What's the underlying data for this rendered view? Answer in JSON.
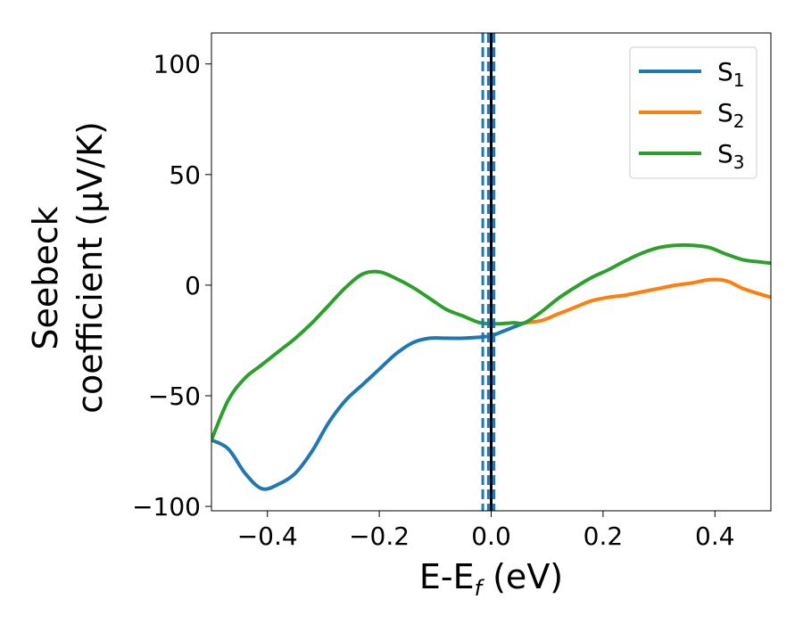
{
  "chart_data": {
    "type": "line",
    "xlabel_main": "E-E",
    "xlabel_sub": "f",
    "xlabel_unit": " (eV)",
    "ylabel_line1": "Seebeck",
    "ylabel_line2": "coefficient  (μV/K)",
    "xlim": [
      -0.5,
      0.5
    ],
    "ylim": [
      -102,
      114
    ],
    "xticks": [
      -0.4,
      -0.2,
      0.0,
      0.2,
      0.4
    ],
    "xtick_labels": [
      "−0.4",
      "−0.2",
      "0.0",
      "0.2",
      "0.4"
    ],
    "yticks": [
      -100,
      -50,
      0,
      50,
      100
    ],
    "ytick_labels": [
      "−100",
      "−50",
      "0",
      "50",
      "100"
    ],
    "grid": false,
    "legend_position": "top-right",
    "series": [
      {
        "name": "S",
        "name_sub": "1",
        "color": "#1f77b4",
        "x": [
          -0.5,
          -0.47,
          -0.44,
          -0.41,
          -0.38,
          -0.35,
          -0.32,
          -0.29,
          -0.26,
          -0.23,
          -0.2,
          -0.17,
          -0.14,
          -0.11,
          -0.08,
          -0.05,
          -0.02,
          0.0
        ],
        "y": [
          -70,
          -74,
          -85,
          -92,
          -90,
          -85,
          -75,
          -62,
          -52,
          -45,
          -38,
          -31,
          -26,
          -24,
          -24,
          -24,
          -23.5,
          -23
        ]
      },
      {
        "name": "S",
        "name_sub": "2",
        "color": "#ff7f0e",
        "x": [
          0.06,
          0.09,
          0.12,
          0.15,
          0.18,
          0.21,
          0.24,
          0.27,
          0.3,
          0.33,
          0.36,
          0.39,
          0.42,
          0.45,
          0.48,
          0.5
        ],
        "y": [
          -17,
          -16,
          -13,
          -10,
          -7,
          -5.5,
          -4.5,
          -3,
          -1.5,
          0,
          1,
          2.5,
          2,
          -1.5,
          -4,
          -5.5
        ]
      },
      {
        "name": "S",
        "name_sub": "3",
        "color": "#2ca02c",
        "x": [
          -0.5,
          -0.47,
          -0.44,
          -0.41,
          -0.38,
          -0.35,
          -0.32,
          -0.29,
          -0.26,
          -0.23,
          -0.2,
          -0.17,
          -0.14,
          -0.11,
          -0.08,
          -0.05,
          -0.02,
          0.01,
          0.04,
          0.06,
          0.09,
          0.12,
          0.15,
          0.18,
          0.21,
          0.24,
          0.27,
          0.3,
          0.33,
          0.36,
          0.39,
          0.42,
          0.45,
          0.48,
          0.5
        ],
        "y": [
          -70,
          -52,
          -42,
          -36,
          -30,
          -24,
          -17,
          -9,
          -1,
          5,
          6,
          3,
          -1,
          -6,
          -11,
          -14,
          -17,
          -17.5,
          -17,
          -17,
          -12,
          -6,
          -1,
          3.5,
          7,
          11,
          14.5,
          17,
          18,
          18,
          17,
          14,
          11.5,
          10.5,
          10
        ]
      },
      {
        "name": "S",
        "name_sub": "1",
        "color": "#1f77b4",
        "x": [
          0.0,
          0.02,
          0.04,
          0.06
        ],
        "y": [
          -23,
          -21,
          -19,
          -17
        ]
      }
    ],
    "vlines": [
      {
        "x": -0.015,
        "color": "#1f77b4",
        "style": "dashed"
      },
      {
        "x": -0.005,
        "color": "#1f77b4",
        "style": "dashed"
      },
      {
        "x": 0.0,
        "color": "#000000",
        "style": "solid"
      },
      {
        "x": 0.005,
        "color": "#1f77b4",
        "style": "dashed"
      }
    ],
    "legend": [
      {
        "label": "S",
        "sub": "1",
        "color": "#1f77b4"
      },
      {
        "label": "S",
        "sub": "2",
        "color": "#ff7f0e"
      },
      {
        "label": "S",
        "sub": "3",
        "color": "#2ca02c"
      }
    ]
  }
}
